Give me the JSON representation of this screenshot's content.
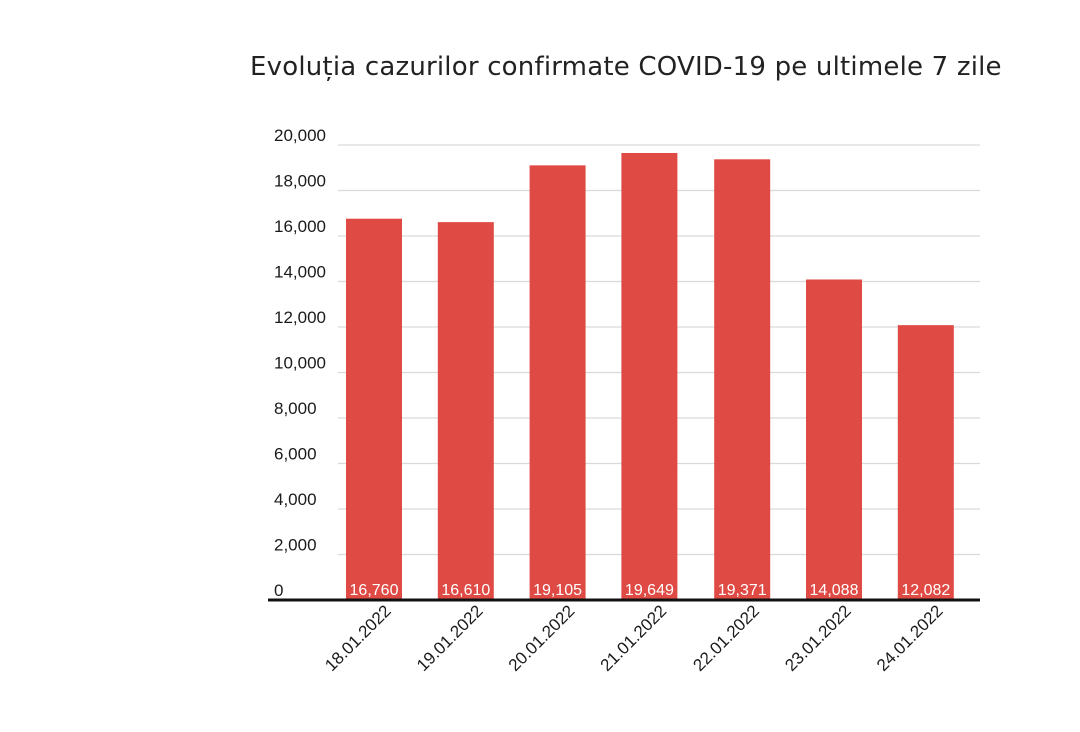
{
  "chart_data": {
    "type": "bar",
    "title": "Evoluția cazurilor confirmate COVID-19 pe ultimele 7 zile",
    "xlabel": "",
    "ylabel": "",
    "categories": [
      "18.01.2022",
      "19.01.2022",
      "20.01.2022",
      "21.01.2022",
      "22.01.2022",
      "23.01.2022",
      "24.01.2022"
    ],
    "values": [
      16760,
      16610,
      19105,
      19649,
      19371,
      14088,
      12082
    ],
    "data_labels": [
      "16,760",
      "16,610",
      "19,105",
      "19,649",
      "19,371",
      "14,088",
      "12,082"
    ],
    "ylim": [
      0,
      20000
    ],
    "y_ticks": [
      0,
      2000,
      4000,
      6000,
      8000,
      10000,
      12000,
      14000,
      16000,
      18000,
      20000
    ],
    "y_tick_labels": [
      "0",
      "2,000",
      "4,000",
      "6,000",
      "8,000",
      "10,000",
      "12,000",
      "14,000",
      "16,000",
      "18,000",
      "20,000"
    ],
    "grid": true,
    "legend": "none",
    "colors": {
      "bar": "#e04a44",
      "grid": "#d9d9d9",
      "axis": "#111111"
    }
  }
}
